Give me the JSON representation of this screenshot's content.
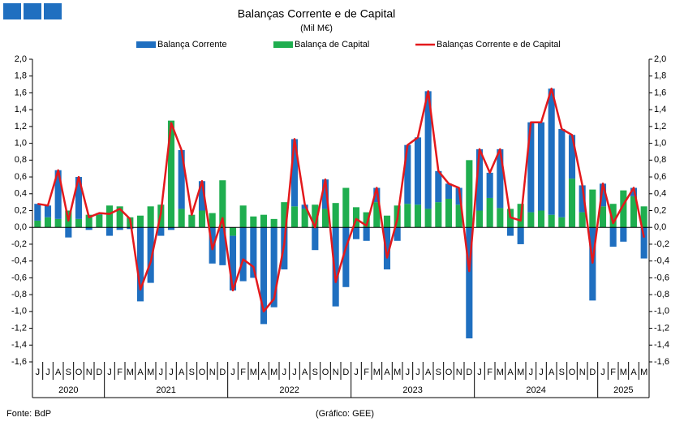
{
  "chart_data": {
    "type": "bar",
    "title": "Balanças Corrente e de Capital",
    "subtitle": "(Mil M€)",
    "source": "Fonte: BdP",
    "credit": "(Gráfico: GEE)",
    "year_groups": [
      {
        "label": "2020",
        "months": [
          "J",
          "J",
          "A",
          "S",
          "O",
          "N",
          "D"
        ]
      },
      {
        "label": "2021",
        "months": [
          "J",
          "F",
          "M",
          "A",
          "M",
          "J",
          "J",
          "A",
          "S",
          "O",
          "N",
          "D"
        ]
      },
      {
        "label": "2022",
        "months": [
          "J",
          "F",
          "M",
          "A",
          "M",
          "J",
          "J",
          "A",
          "S",
          "O",
          "N",
          "D"
        ]
      },
      {
        "label": "2023",
        "months": [
          "J",
          "F",
          "M",
          "A",
          "M",
          "J",
          "J",
          "A",
          "S",
          "O",
          "N",
          "D"
        ]
      },
      {
        "label": "2024",
        "months": [
          "J",
          "F",
          "M",
          "A",
          "M",
          "J",
          "J",
          "A",
          "S",
          "O",
          "N",
          "D"
        ]
      },
      {
        "label": "2025",
        "months": [
          "J",
          "F",
          "M",
          "A",
          "M"
        ]
      }
    ],
    "series": [
      {
        "name": "Balança Corrente",
        "type": "bar",
        "color": "#1f6fc0",
        "values": [
          0.2,
          0.14,
          0.58,
          -0.12,
          0.5,
          -0.03,
          0.02,
          -0.1,
          -0.03,
          -0.02,
          -0.88,
          -0.66,
          -0.1,
          -0.03,
          0.7,
          0.0,
          0.35,
          -0.43,
          -0.45,
          -0.65,
          -0.64,
          -0.6,
          -1.15,
          -0.95,
          -0.5,
          0.8,
          0.05,
          -0.27,
          0.35,
          -0.94,
          -0.71,
          -0.14,
          -0.16,
          0.17,
          -0.5,
          -0.16,
          0.7,
          0.8,
          1.4,
          0.37,
          0.18,
          0.2,
          -1.32,
          0.73,
          0.3,
          0.7,
          -0.1,
          -0.2,
          1.07,
          1.05,
          1.5,
          1.05,
          0.52,
          0.32,
          -0.87,
          0.27,
          -0.23,
          -0.17,
          0.1,
          -0.37
        ]
      },
      {
        "name": "Balança de Capital",
        "type": "bar",
        "color": "#1fae4f",
        "values": [
          0.08,
          0.12,
          0.1,
          0.2,
          0.1,
          0.15,
          0.15,
          0.26,
          0.25,
          0.12,
          0.14,
          0.25,
          0.27,
          1.27,
          0.22,
          0.15,
          0.2,
          0.17,
          0.56,
          -0.1,
          0.26,
          0.13,
          0.15,
          0.1,
          0.3,
          0.25,
          0.22,
          0.27,
          0.22,
          0.29,
          0.47,
          0.24,
          0.18,
          0.3,
          0.14,
          0.26,
          0.28,
          0.27,
          0.22,
          0.3,
          0.34,
          0.27,
          0.8,
          0.2,
          0.35,
          0.23,
          0.22,
          0.28,
          0.18,
          0.2,
          0.15,
          0.12,
          0.58,
          0.18,
          0.45,
          0.25,
          0.28,
          0.44,
          0.37,
          0.25
        ]
      },
      {
        "name": "Balanças Corrente e de Capital",
        "type": "line",
        "color": "#e3191c",
        "values": [
          0.28,
          0.26,
          0.68,
          0.08,
          0.6,
          0.12,
          0.17,
          0.16,
          0.22,
          0.1,
          -0.74,
          -0.41,
          0.17,
          1.24,
          0.92,
          0.15,
          0.55,
          -0.26,
          0.11,
          -0.75,
          -0.38,
          -0.47,
          -1.0,
          -0.85,
          -0.2,
          1.05,
          0.27,
          0.0,
          0.57,
          -0.65,
          -0.24,
          0.1,
          0.02,
          0.47,
          -0.36,
          0.1,
          0.98,
          1.07,
          1.62,
          0.67,
          0.52,
          0.47,
          -0.52,
          0.93,
          0.65,
          0.93,
          0.12,
          0.08,
          1.25,
          1.25,
          1.65,
          1.17,
          1.1,
          0.5,
          -0.42,
          0.52,
          0.05,
          0.27,
          0.47,
          -0.12
        ]
      }
    ],
    "ylim": [
      -1.6,
      2.0
    ],
    "yticks": [
      {
        "value": -1.6,
        "label": "-1,6"
      },
      {
        "value": -1.4,
        "label": "-1,4"
      },
      {
        "value": -1.2,
        "label": "-1,2"
      },
      {
        "value": -1.0,
        "label": "-1,0"
      },
      {
        "value": -0.8,
        "label": "-0,8"
      },
      {
        "value": -0.6,
        "label": "-0,6"
      },
      {
        "value": -0.4,
        "label": "-0,4"
      },
      {
        "value": -0.2,
        "label": "-0,2"
      },
      {
        "value": 0,
        "label": "0,0"
      },
      {
        "value": 0.2,
        "label": "0,2"
      },
      {
        "value": 0.4,
        "label": "0,4"
      },
      {
        "value": 0.6,
        "label": "0,6"
      },
      {
        "value": 0.8,
        "label": "0,8"
      },
      {
        "value": 1.0,
        "label": "1,0"
      },
      {
        "value": 1.2,
        "label": "1,2"
      },
      {
        "value": 1.4,
        "label": "1,4"
      },
      {
        "value": 1.6,
        "label": "1,6"
      },
      {
        "value": 1.8,
        "label": "1,8"
      },
      {
        "value": 2.0,
        "label": "2,0"
      }
    ],
    "y2lim": [
      -1.6,
      2.0
    ],
    "y2ticks": [
      {
        "value": -1.6,
        "label": "-1,6"
      },
      {
        "value": -1.4,
        "label": "-1,4"
      },
      {
        "value": -1.2,
        "label": "-1,2"
      },
      {
        "value": -1.0,
        "label": "-1,0"
      },
      {
        "value": -0.8,
        "label": "-0,8"
      },
      {
        "value": -0.6,
        "label": "-0,6"
      },
      {
        "value": -0.4,
        "label": "-0,4"
      },
      {
        "value": -0.2,
        "label": "-0,2"
      },
      {
        "value": 0,
        "label": "0,0"
      },
      {
        "value": 0.2,
        "label": "0,2"
      },
      {
        "value": 0.4,
        "label": "0,4"
      },
      {
        "value": 0.6,
        "label": "0,6"
      },
      {
        "value": 0.8,
        "label": "0,8"
      },
      {
        "value": 1.0,
        "label": "1,0"
      },
      {
        "value": 1.2,
        "label": "1,2"
      },
      {
        "value": 1.4,
        "label": "1,4"
      },
      {
        "value": 1.6,
        "label": "1,6"
      },
      {
        "value": 1.8,
        "label": "1,8"
      },
      {
        "value": 2.0,
        "label": "2,0"
      }
    ],
    "grid": false,
    "legend": "top"
  }
}
